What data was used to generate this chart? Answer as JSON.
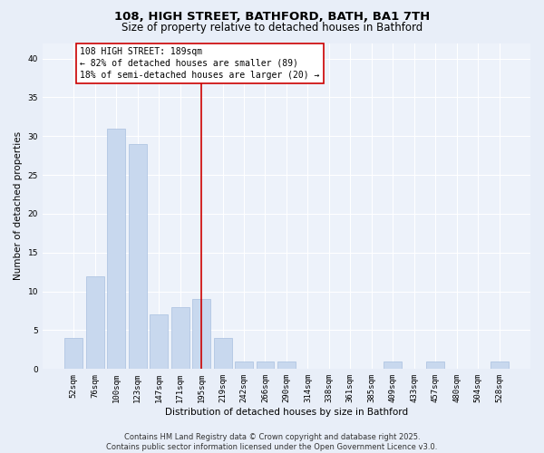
{
  "title1": "108, HIGH STREET, BATHFORD, BATH, BA1 7TH",
  "title2": "Size of property relative to detached houses in Bathford",
  "xlabel": "Distribution of detached houses by size in Bathford",
  "ylabel": "Number of detached properties",
  "categories": [
    "52sqm",
    "76sqm",
    "100sqm",
    "123sqm",
    "147sqm",
    "171sqm",
    "195sqm",
    "219sqm",
    "242sqm",
    "266sqm",
    "290sqm",
    "314sqm",
    "338sqm",
    "361sqm",
    "385sqm",
    "409sqm",
    "433sqm",
    "457sqm",
    "480sqm",
    "504sqm",
    "528sqm"
  ],
  "values": [
    4,
    12,
    31,
    29,
    7,
    8,
    9,
    4,
    1,
    1,
    1,
    0,
    0,
    0,
    0,
    1,
    0,
    1,
    0,
    0,
    1
  ],
  "bar_color": "#c8d8ee",
  "bar_edgecolor": "#a8c0e0",
  "vline_x": 6.0,
  "vline_color": "#cc0000",
  "annotation_text": "108 HIGH STREET: 189sqm\n← 82% of detached houses are smaller (89)\n18% of semi-detached houses are larger (20) →",
  "annotation_box_color": "#ffffff",
  "annotation_box_edgecolor": "#cc0000",
  "ylim": [
    0,
    42
  ],
  "yticks": [
    0,
    5,
    10,
    15,
    20,
    25,
    30,
    35,
    40
  ],
  "bg_color": "#e8eef8",
  "axes_bg_color": "#edf2fa",
  "footer": "Contains HM Land Registry data © Crown copyright and database right 2025.\nContains public sector information licensed under the Open Government Licence v3.0.",
  "title_fontsize": 9.5,
  "subtitle_fontsize": 8.5,
  "axis_label_fontsize": 7.5,
  "tick_fontsize": 6.5,
  "annotation_fontsize": 7,
  "footer_fontsize": 6,
  "ylabel_fontsize": 7.5
}
